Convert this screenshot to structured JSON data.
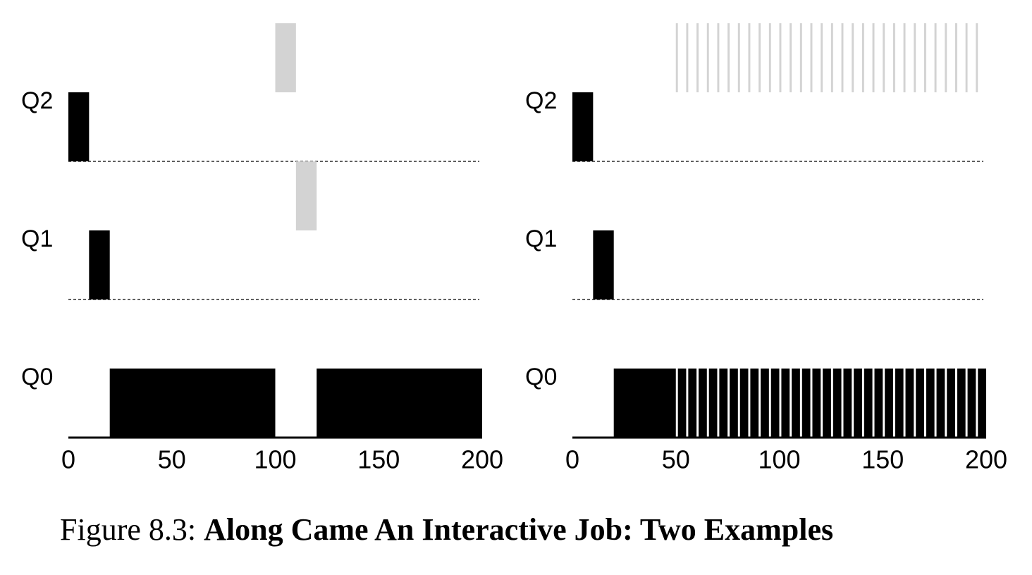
{
  "chart_data": [
    {
      "type": "timeline",
      "xlim": [
        0,
        200
      ],
      "xticks": [
        0,
        50,
        100,
        150,
        200
      ],
      "lanes": [
        {
          "label": "Q2",
          "series": [
            {
              "color": "#000000",
              "segments": [
                [
                  0,
                  10
                ]
              ]
            },
            {
              "color": "#d3d3d3",
              "segments": [
                [
                  100,
                  110
                ]
              ]
            }
          ]
        },
        {
          "label": "Q1",
          "series": [
            {
              "color": "#000000",
              "segments": [
                [
                  10,
                  20
                ]
              ]
            },
            {
              "color": "#d3d3d3",
              "segments": [
                [
                  110,
                  120
                ]
              ]
            }
          ]
        },
        {
          "label": "Q0",
          "series": [
            {
              "color": "#000000",
              "segments": [
                [
                  20,
                  100
                ],
                [
                  120,
                  200
                ]
              ]
            }
          ]
        }
      ]
    },
    {
      "type": "timeline",
      "xlim": [
        0,
        200
      ],
      "xticks": [
        0,
        50,
        100,
        150,
        200
      ],
      "lanes": [
        {
          "label": "Q2",
          "series": [
            {
              "color": "#000000",
              "segments": [
                [
                  0,
                  10
                ]
              ]
            },
            {
              "color": "#d3d3d3",
              "segments": [
                [
                  50,
                  51
                ],
                [
                  55,
                  56
                ],
                [
                  60,
                  61
                ],
                [
                  65,
                  66
                ],
                [
                  70,
                  71
                ],
                [
                  75,
                  76
                ],
                [
                  80,
                  81
                ],
                [
                  85,
                  86
                ],
                [
                  90,
                  91
                ],
                [
                  95,
                  96
                ],
                [
                  100,
                  101
                ],
                [
                  105,
                  106
                ],
                [
                  110,
                  111
                ],
                [
                  115,
                  116
                ],
                [
                  120,
                  121
                ],
                [
                  125,
                  126
                ],
                [
                  130,
                  131
                ],
                [
                  135,
                  136
                ],
                [
                  140,
                  141
                ],
                [
                  145,
                  146
                ],
                [
                  150,
                  151
                ],
                [
                  155,
                  156
                ],
                [
                  160,
                  161
                ],
                [
                  165,
                  166
                ],
                [
                  170,
                  171
                ],
                [
                  175,
                  176
                ],
                [
                  180,
                  181
                ],
                [
                  185,
                  186
                ],
                [
                  190,
                  191
                ],
                [
                  195,
                  196
                ]
              ]
            }
          ]
        },
        {
          "label": "Q1",
          "series": [
            {
              "color": "#000000",
              "segments": [
                [
                  10,
                  20
                ]
              ]
            }
          ]
        },
        {
          "label": "Q0",
          "series": [
            {
              "color": "#000000",
              "segments": [
                [
                  20,
                  50
                ],
                [
                  51,
                  55
                ],
                [
                  56,
                  60
                ],
                [
                  61,
                  65
                ],
                [
                  66,
                  70
                ],
                [
                  71,
                  75
                ],
                [
                  76,
                  80
                ],
                [
                  81,
                  85
                ],
                [
                  86,
                  90
                ],
                [
                  91,
                  95
                ],
                [
                  96,
                  100
                ],
                [
                  101,
                  105
                ],
                [
                  106,
                  110
                ],
                [
                  111,
                  115
                ],
                [
                  116,
                  120
                ],
                [
                  121,
                  125
                ],
                [
                  126,
                  130
                ],
                [
                  131,
                  135
                ],
                [
                  136,
                  140
                ],
                [
                  141,
                  145
                ],
                [
                  146,
                  150
                ],
                [
                  151,
                  155
                ],
                [
                  156,
                  160
                ],
                [
                  161,
                  165
                ],
                [
                  166,
                  170
                ],
                [
                  171,
                  175
                ],
                [
                  176,
                  180
                ],
                [
                  181,
                  185
                ],
                [
                  186,
                  190
                ],
                [
                  191,
                  195
                ],
                [
                  196,
                  200
                ]
              ]
            }
          ]
        }
      ]
    }
  ],
  "caption": {
    "label": "Figure 8.3:",
    "text": "Along Came An Interactive Job: Two Examples"
  }
}
